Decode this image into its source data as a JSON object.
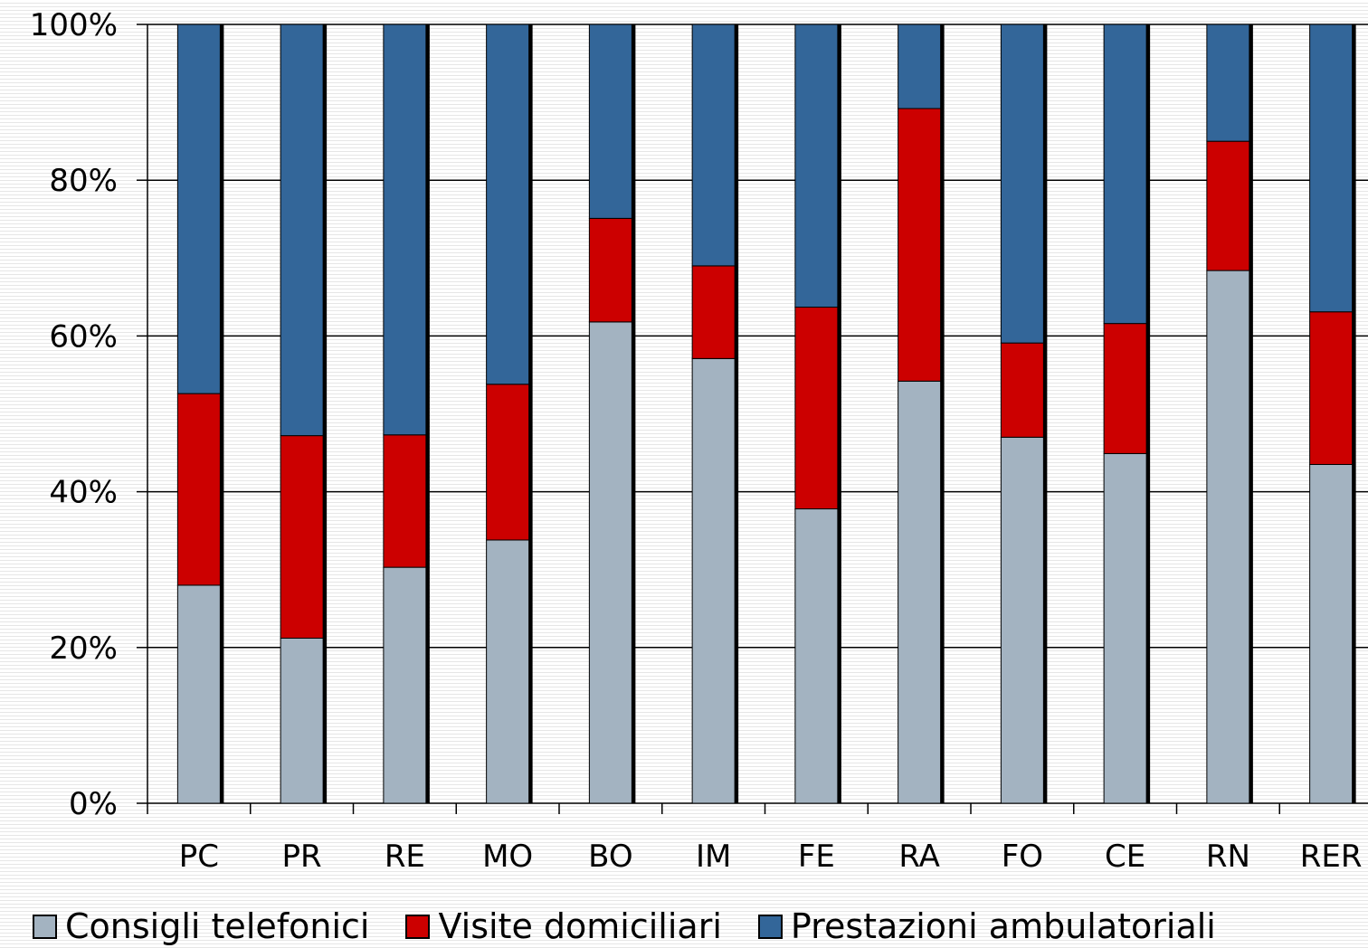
{
  "chart_data": {
    "type": "bar",
    "stacked": "percent",
    "categories": [
      "PC",
      "PR",
      "RE",
      "MO",
      "BO",
      "IM",
      "FE",
      "RA",
      "FO",
      "CE",
      "RN",
      "RER"
    ],
    "series": [
      {
        "name": "Consigli telefonici",
        "color": "#a3b3c1",
        "values": [
          28,
          21.2,
          30.3,
          33.8,
          61.8,
          57.1,
          37.8,
          54.2,
          47,
          44.9,
          68.4,
          43.5
        ]
      },
      {
        "name": "Visite domiciliari",
        "color": "#cc0000",
        "values": [
          24.6,
          26,
          17,
          20,
          13.3,
          11.9,
          25.9,
          35,
          12.1,
          16.7,
          16.6,
          19.6
        ]
      },
      {
        "name": "Prestazioni ambulatoriali",
        "color": "#336699",
        "values": [
          47.4,
          52.8,
          52.7,
          46.2,
          24.9,
          31,
          36.3,
          10.8,
          40.9,
          38.4,
          15,
          36.9
        ]
      }
    ],
    "yticks": [
      "0%",
      "20%",
      "40%",
      "60%",
      "80%",
      "100%"
    ],
    "ylim": [
      0,
      100
    ],
    "grid": true,
    "legend_position": "bottom"
  }
}
